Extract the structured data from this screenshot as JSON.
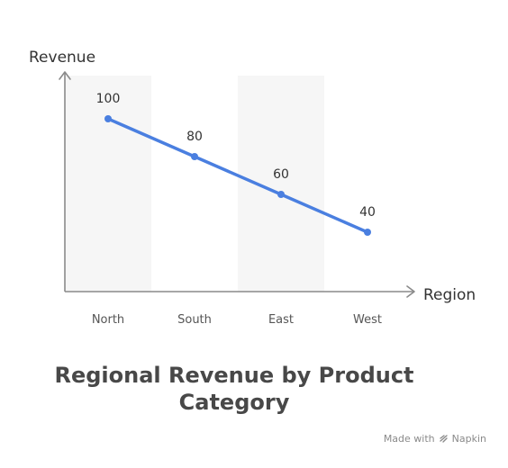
{
  "chart_data": {
    "type": "line",
    "title": "Regional Revenue by Product Category",
    "xlabel": "Region",
    "ylabel": "Revenue",
    "categories": [
      "North",
      "South",
      "East",
      "West"
    ],
    "series": [
      {
        "values": [
          100,
          80,
          60,
          40
        ],
        "color": "#4a7fe0"
      }
    ],
    "data_labels": [
      "100",
      "80",
      "60",
      "40"
    ],
    "ylim": [
      20,
      100
    ],
    "grid": false,
    "band_color": "#f6f6f6",
    "axis_color": "#8a8a8a"
  },
  "footer": {
    "made_with": "Made with",
    "brand": "Napkin",
    "brand_icon": "napkin-logo-icon"
  }
}
